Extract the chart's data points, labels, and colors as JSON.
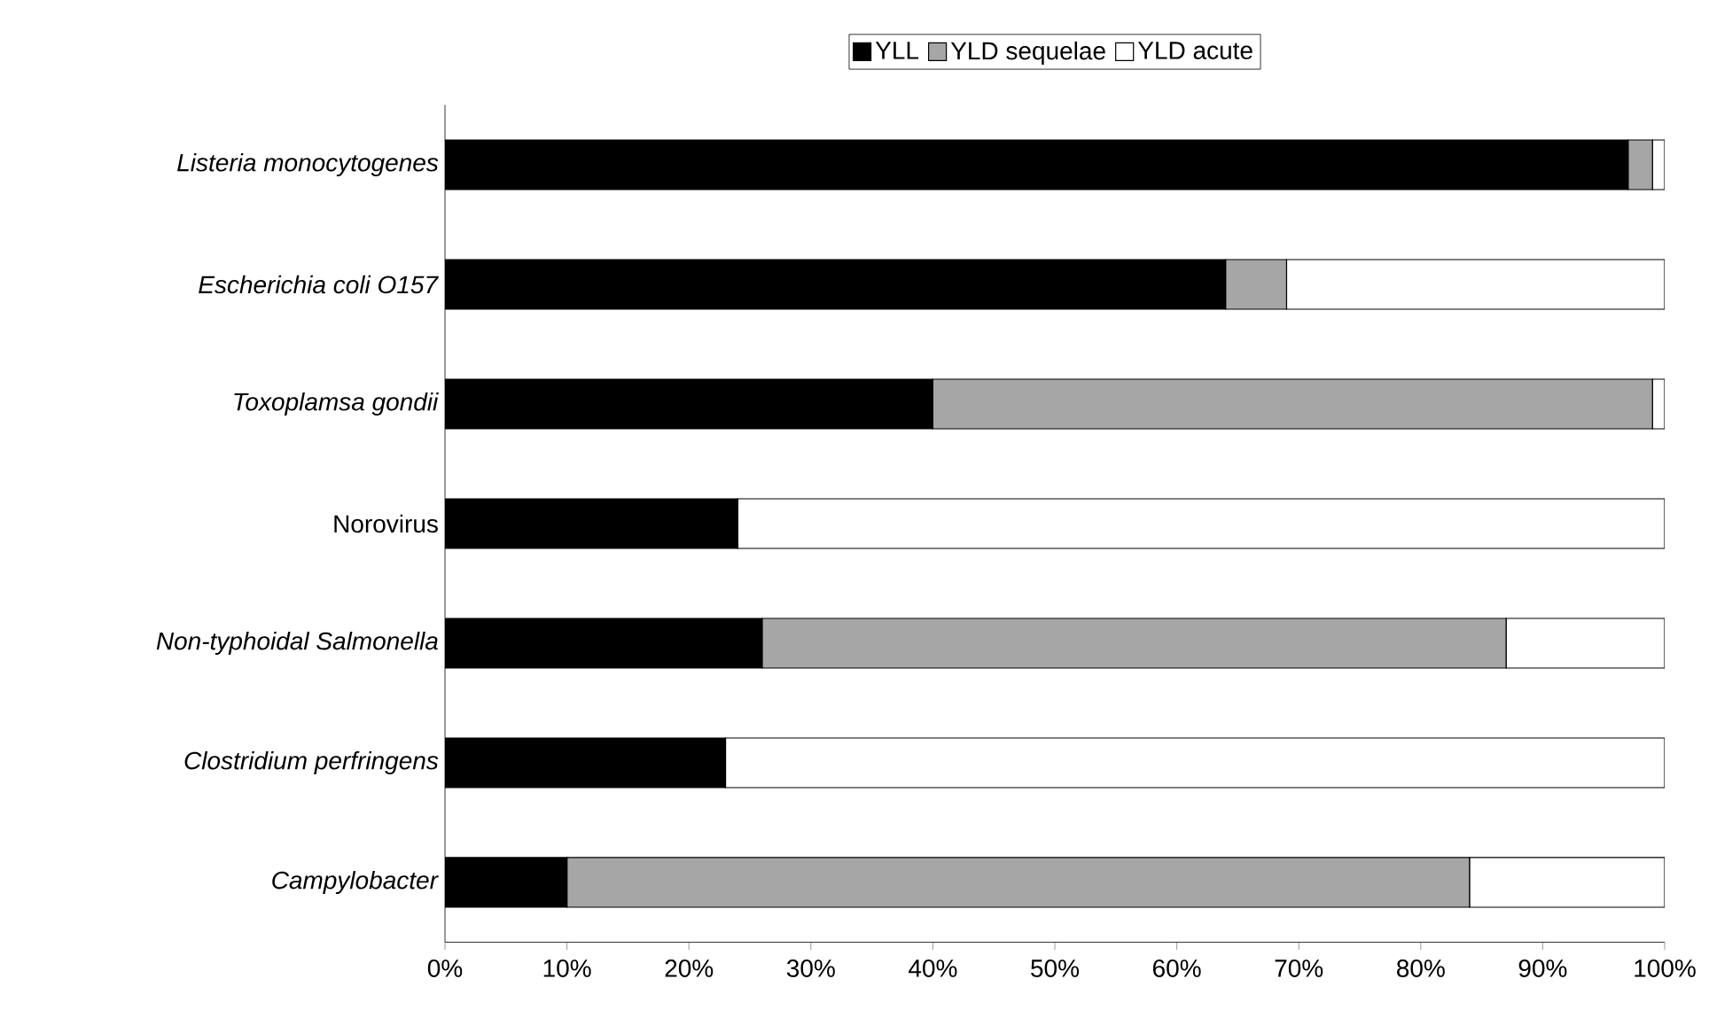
{
  "chart_data": {
    "type": "bar",
    "orientation": "horizontal",
    "stacked": true,
    "legend": "top",
    "categories": [
      "*Listeria monocytogenes*",
      "*Escherichia coli O157*",
      "*Toxoplamsa gondii*",
      "Norovirus",
      "*Non-typhoidal Salmonella*",
      "*Clostridium perfringens*",
      "*Campylobacter*"
    ],
    "series": [
      {
        "name": "YLL",
        "color": "#000000",
        "values": [
          97,
          64,
          40,
          24,
          26,
          23,
          10
        ]
      },
      {
        "name": "YLD sequelae",
        "color": "#a6a6a6",
        "values": [
          2,
          5,
          59,
          0,
          61,
          0,
          74
        ]
      },
      {
        "name": "YLD acute",
        "color": "#ffffff",
        "values": [
          1,
          31,
          1,
          76,
          13,
          77,
          16
        ]
      }
    ],
    "xlim": [
      0,
      100
    ],
    "xticks": [
      {
        "value": 0,
        "label": "0%"
      },
      {
        "value": 10,
        "label": "10%"
      },
      {
        "value": 20,
        "label": "20%"
      },
      {
        "value": 30,
        "label": "30%"
      },
      {
        "value": 40,
        "label": "40%"
      },
      {
        "value": 50,
        "label": "50%"
      },
      {
        "value": 60,
        "label": "60%"
      },
      {
        "value": 70,
        "label": "70%"
      },
      {
        "value": 80,
        "label": "80%"
      },
      {
        "value": 90,
        "label": "90%"
      },
      {
        "value": 100,
        "label": "100%"
      }
    ]
  }
}
